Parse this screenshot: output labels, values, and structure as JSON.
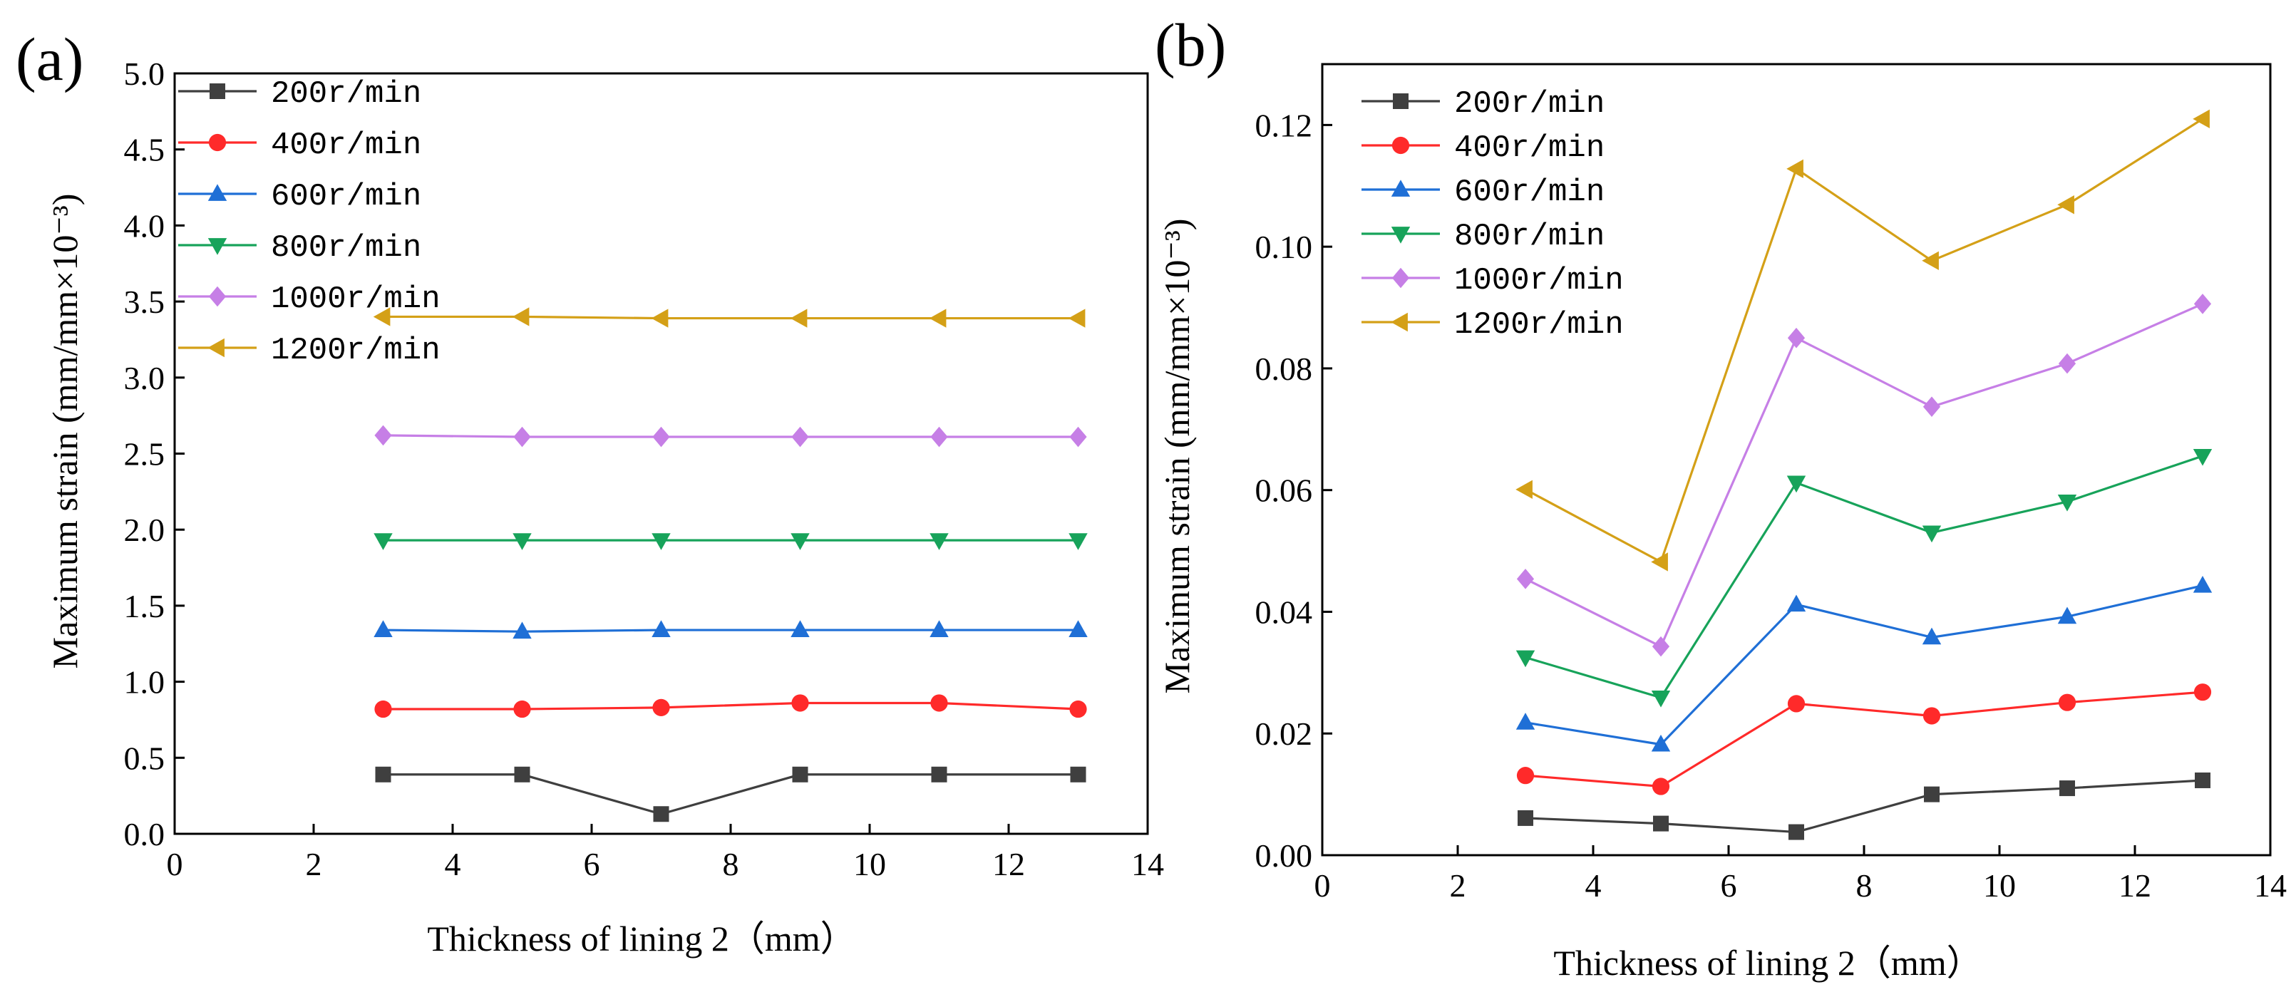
{
  "figure": {
    "panels": [
      "(a)",
      "(b)"
    ]
  },
  "chart_data": [
    {
      "type": "line",
      "panel_label": "(a)",
      "xlabel": "Thickness of lining 2（mm）",
      "ylabel": "Maximum strain (mm/mm×10⁻³)",
      "xlim": [
        0,
        14
      ],
      "ylim": [
        0,
        5.0
      ],
      "xticks": [
        0,
        2,
        4,
        6,
        8,
        10,
        12,
        14
      ],
      "xtick_labels": [
        "0",
        "2",
        "4",
        "6",
        "8",
        "10",
        "12",
        "14"
      ],
      "yticks": [
        0,
        0.5,
        1.0,
        1.5,
        2.0,
        2.5,
        3.0,
        3.5,
        4.0,
        4.5,
        5.0
      ],
      "ytick_labels": [
        "0.0",
        "0.5",
        "1.0",
        "1.5",
        "2.0",
        "2.5",
        "3.0",
        "3.5",
        "4.0",
        "4.5",
        "5.0"
      ],
      "legend_position": "top-left",
      "x": [
        3,
        5,
        7,
        9,
        11,
        13
      ],
      "series": [
        {
          "name": "200r/min",
          "color": "#3f3f3f",
          "marker": "square",
          "values": [
            0.39,
            0.39,
            0.13,
            0.39,
            0.39,
            0.39
          ]
        },
        {
          "name": "400r/min",
          "color": "#ff2a2a",
          "marker": "circle",
          "values": [
            0.82,
            0.82,
            0.83,
            0.86,
            0.86,
            0.82
          ]
        },
        {
          "name": "600r/min",
          "color": "#1f6fd6",
          "marker": "triangle-up",
          "values": [
            1.34,
            1.33,
            1.34,
            1.34,
            1.34,
            1.34
          ]
        },
        {
          "name": "800r/min",
          "color": "#17a35a",
          "marker": "triangle-down",
          "values": [
            1.93,
            1.93,
            1.93,
            1.93,
            1.93,
            1.93
          ]
        },
        {
          "name": "1000r/min",
          "color": "#c67fe6",
          "marker": "diamond",
          "values": [
            2.62,
            2.61,
            2.61,
            2.61,
            2.61,
            2.61
          ]
        },
        {
          "name": "1200r/min",
          "color": "#d4a017",
          "marker": "triangle-left",
          "values": [
            3.4,
            3.4,
            3.39,
            3.39,
            3.39,
            3.39
          ]
        }
      ]
    },
    {
      "type": "line",
      "panel_label": "(b)",
      "xlabel": "Thickness of lining 2（mm）",
      "ylabel": "Maximum strain (mm/mm×10⁻³)",
      "xlim": [
        0,
        14
      ],
      "ylim": [
        0,
        0.13
      ],
      "xticks": [
        0,
        2,
        4,
        6,
        8,
        10,
        12,
        14
      ],
      "xtick_labels": [
        "0",
        "2",
        "4",
        "6",
        "8",
        "10",
        "12",
        "14"
      ],
      "yticks": [
        0,
        0.02,
        0.04,
        0.06,
        0.08,
        0.1,
        0.12
      ],
      "ytick_labels": [
        "0.00",
        "0.02",
        "0.04",
        "0.06",
        "0.08",
        "0.10",
        "0.12"
      ],
      "legend_position": "top-left",
      "x": [
        3,
        5,
        7,
        9,
        11,
        13
      ],
      "series": [
        {
          "name": "200r/min",
          "color": "#3f3f3f",
          "marker": "square",
          "values": [
            0.0061,
            0.0052,
            0.0038,
            0.01,
            0.011,
            0.0123
          ]
        },
        {
          "name": "400r/min",
          "color": "#ff2a2a",
          "marker": "circle",
          "values": [
            0.0131,
            0.0113,
            0.0249,
            0.0229,
            0.0251,
            0.0268
          ]
        },
        {
          "name": "600r/min",
          "color": "#1f6fd6",
          "marker": "triangle-up",
          "values": [
            0.0218,
            0.0182,
            0.0412,
            0.0358,
            0.0392,
            0.0443
          ]
        },
        {
          "name": "800r/min",
          "color": "#17a35a",
          "marker": "triangle-down",
          "values": [
            0.0325,
            0.0259,
            0.0612,
            0.053,
            0.0581,
            0.0656
          ]
        },
        {
          "name": "1000r/min",
          "color": "#c67fe6",
          "marker": "diamond",
          "values": [
            0.0454,
            0.0343,
            0.085,
            0.0737,
            0.0808,
            0.0906
          ]
        },
        {
          "name": "1200r/min",
          "color": "#d4a017",
          "marker": "triangle-left",
          "values": [
            0.0601,
            0.0482,
            0.1128,
            0.0977,
            0.1069,
            0.121
          ]
        }
      ]
    }
  ]
}
